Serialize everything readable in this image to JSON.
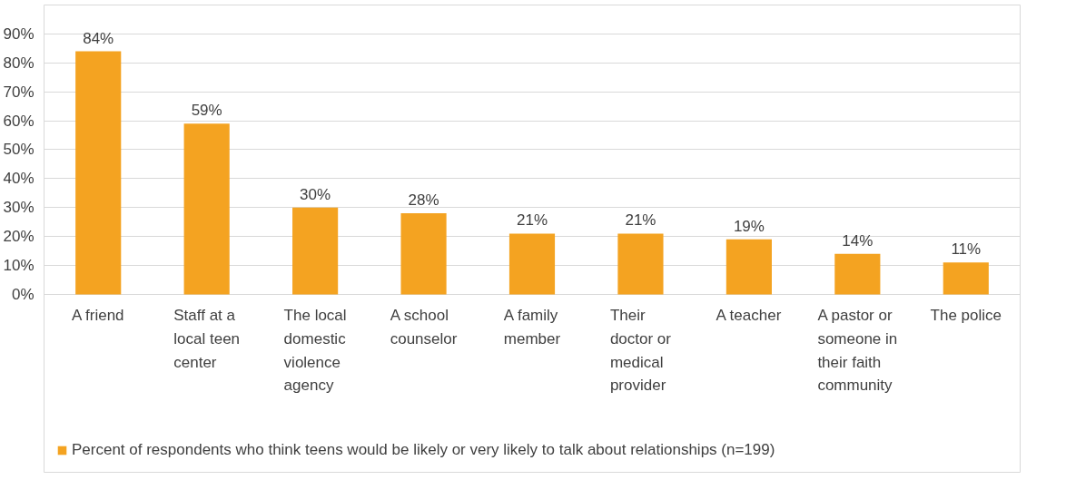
{
  "chart_data": {
    "type": "bar",
    "categories": [
      "A friend",
      "Staff at a local teen center",
      "The local domestic violence agency",
      "A school counselor",
      "A family member",
      "Their doctor or medical provider",
      "A teacher",
      "A pastor or someone in their faith community",
      "The police"
    ],
    "series": [
      {
        "name": "Percent of respondents who think teens would be likely or very likely to talk about relationships (n=199)",
        "color": "#f4a321",
        "values": [
          84,
          59,
          30,
          28,
          21,
          21,
          19,
          14,
          11
        ],
        "value_labels": [
          "84%",
          "59%",
          "30%",
          "28%",
          "21%",
          "21%",
          "19%",
          "14%",
          "11%"
        ]
      }
    ],
    "ylim": [
      0,
      90
    ],
    "yticks": [
      {
        "value": 0,
        "label": "0%"
      },
      {
        "value": 10,
        "label": "10%"
      },
      {
        "value": 20,
        "label": "20%"
      },
      {
        "value": 30,
        "label": "30%"
      },
      {
        "value": 40,
        "label": "40%"
      },
      {
        "value": 50,
        "label": "50%"
      },
      {
        "value": 60,
        "label": "60%"
      },
      {
        "value": 70,
        "label": "70%"
      },
      {
        "value": 80,
        "label": "80%"
      },
      {
        "value": 90,
        "label": "90%"
      }
    ],
    "grid": "y",
    "legend": "bottom"
  }
}
